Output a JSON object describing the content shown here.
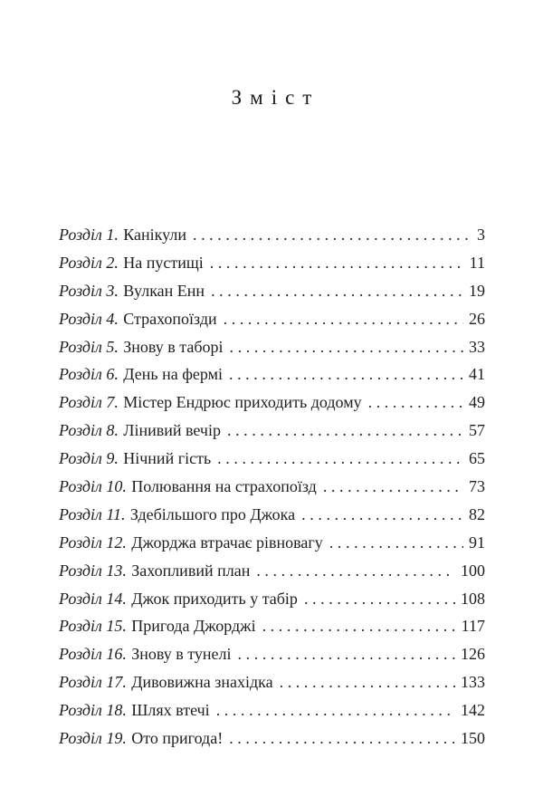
{
  "page": {
    "title": "Зміст",
    "background_color": "#ffffff",
    "text_color": "#1e1e1e"
  },
  "toc": {
    "entries": [
      {
        "label": "Розділ 1.",
        "title": "Канікули",
        "page": "3"
      },
      {
        "label": "Розділ 2.",
        "title": "На пустищі",
        "page": "11"
      },
      {
        "label": "Розділ 3.",
        "title": "Вулкан Енн",
        "page": "19"
      },
      {
        "label": "Розділ 4.",
        "title": "Страхопоїзди",
        "page": "26"
      },
      {
        "label": "Розділ 5.",
        "title": "Знову в таборі",
        "page": "33"
      },
      {
        "label": "Розділ 6.",
        "title": "День на фермі",
        "page": "41"
      },
      {
        "label": "Розділ 7.",
        "title": "Містер Ендрюс приходить додому",
        "page": "49"
      },
      {
        "label": "Розділ 8.",
        "title": "Лінивий вечір",
        "page": "57"
      },
      {
        "label": "Розділ 9.",
        "title": "Нічний гість",
        "page": "65"
      },
      {
        "label": "Розділ 10.",
        "title": "Полювання на страхопоїзд",
        "page": "73"
      },
      {
        "label": "Розділ 11.",
        "title": "Здебільшого про Джока",
        "page": "82"
      },
      {
        "label": "Розділ 12.",
        "title": "Джорджа втрачає рівновагу",
        "page": "91"
      },
      {
        "label": "Розділ 13.",
        "title": "Захопливий план",
        "page": "100"
      },
      {
        "label": "Розділ 14.",
        "title": "Джок приходить у табір",
        "page": "108"
      },
      {
        "label": "Розділ 15.",
        "title": "Пригода Джорджі",
        "page": "117"
      },
      {
        "label": "Розділ 16.",
        "title": "Знову в тунелі",
        "page": "126"
      },
      {
        "label": "Розділ 17.",
        "title": "Дивовижна знахідка",
        "page": "133"
      },
      {
        "label": "Розділ 18.",
        "title": "Шлях втечі",
        "page": "142"
      },
      {
        "label": "Розділ 19.",
        "title": "Ото пригода!",
        "page": "150"
      }
    ]
  }
}
